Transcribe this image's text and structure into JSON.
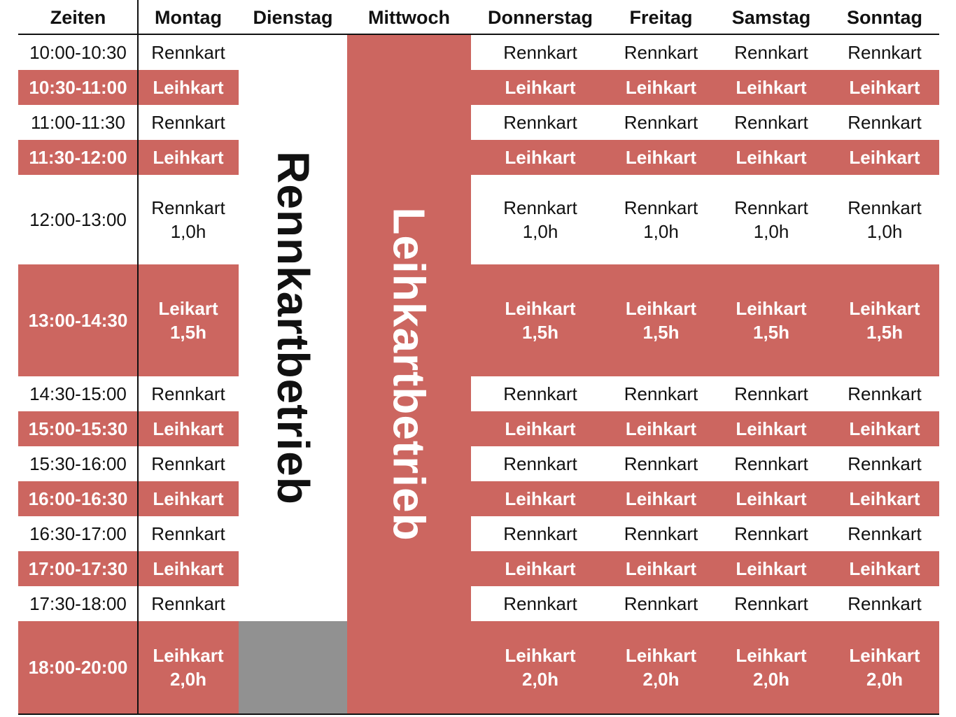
{
  "colors": {
    "accent": "#cc6660",
    "closed": "#919191",
    "text": "#111111"
  },
  "headers": {
    "zeiten": "Zeiten",
    "montag": "Montag",
    "dienstag": "Dienstag",
    "mittwoch": "Mittwoch",
    "donnerstag": "Donnerstag",
    "freitag": "Freitag",
    "samstag": "Samstag",
    "sonntag": "Sonntag"
  },
  "times": [
    "10:00-10:30",
    "10:30-11:00",
    "11:00-11:30",
    "11:30-12:00",
    "12:00-13:00",
    "13:00-14:30",
    "14:30-15:00",
    "15:00-15:30",
    "15:30-16:00",
    "16:00-16:30",
    "16:30-17:00",
    "17:00-17:30",
    "17:30-18:00",
    "18:00-20:00"
  ],
  "montag": [
    "Rennkart",
    "Leihkart",
    "Rennkart",
    "Leihkart",
    "Rennkart\n1,0h",
    "Leikart\n1,5h",
    "Rennkart",
    "Leihkart",
    "Rennkart",
    "Leihkart",
    "Rennkart",
    "Leihkart",
    "Rennkart",
    "Leihkart\n2,0h"
  ],
  "rest_days": [
    "Rennkart",
    "Leihkart",
    "Rennkart",
    "Leihkart",
    "Rennkart\n1,0h",
    "Leihkart\n1,5h",
    "Rennkart",
    "Leihkart",
    "Rennkart",
    "Leihkart",
    "Rennkart",
    "Leihkart",
    "Rennkart",
    "Leihkart\n2,0h"
  ],
  "dienstag_label": "Rennkartbetrieb",
  "mittwoch_label": "Leihkartbetrieb"
}
